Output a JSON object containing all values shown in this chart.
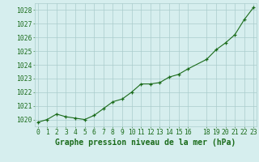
{
  "x": [
    0,
    1,
    2,
    3,
    4,
    5,
    6,
    7,
    8,
    9,
    10,
    11,
    12,
    13,
    14,
    15,
    16,
    18,
    19,
    20,
    21,
    22,
    23
  ],
  "y": [
    1019.8,
    1020.0,
    1020.4,
    1020.2,
    1020.1,
    1020.0,
    1020.3,
    1020.8,
    1021.3,
    1021.5,
    1022.0,
    1022.6,
    1022.6,
    1022.7,
    1023.1,
    1023.3,
    1023.7,
    1024.4,
    1025.1,
    1025.6,
    1026.2,
    1027.3,
    1028.2
  ],
  "bg_color": "#d6eeee",
  "grid_color": "#aacccc",
  "line_color": "#1a6b1a",
  "marker_color": "#1a6b1a",
  "xlabel": "Graphe pression niveau de la mer (hPa)",
  "tick_label_color": "#1a6b1a",
  "ylim": [
    1019.5,
    1028.5
  ],
  "yticks": [
    1020,
    1021,
    1022,
    1023,
    1024,
    1025,
    1026,
    1027,
    1028
  ],
  "xticks": [
    0,
    1,
    2,
    3,
    4,
    5,
    6,
    7,
    8,
    9,
    10,
    11,
    12,
    13,
    14,
    15,
    16,
    18,
    19,
    20,
    21,
    22,
    23
  ],
  "xlim": [
    -0.3,
    23.3
  ],
  "tick_fontsize": 5.8,
  "xlabel_fontsize": 7.0,
  "linewidth": 0.8,
  "markersize": 3.5,
  "markeredgewidth": 0.9
}
